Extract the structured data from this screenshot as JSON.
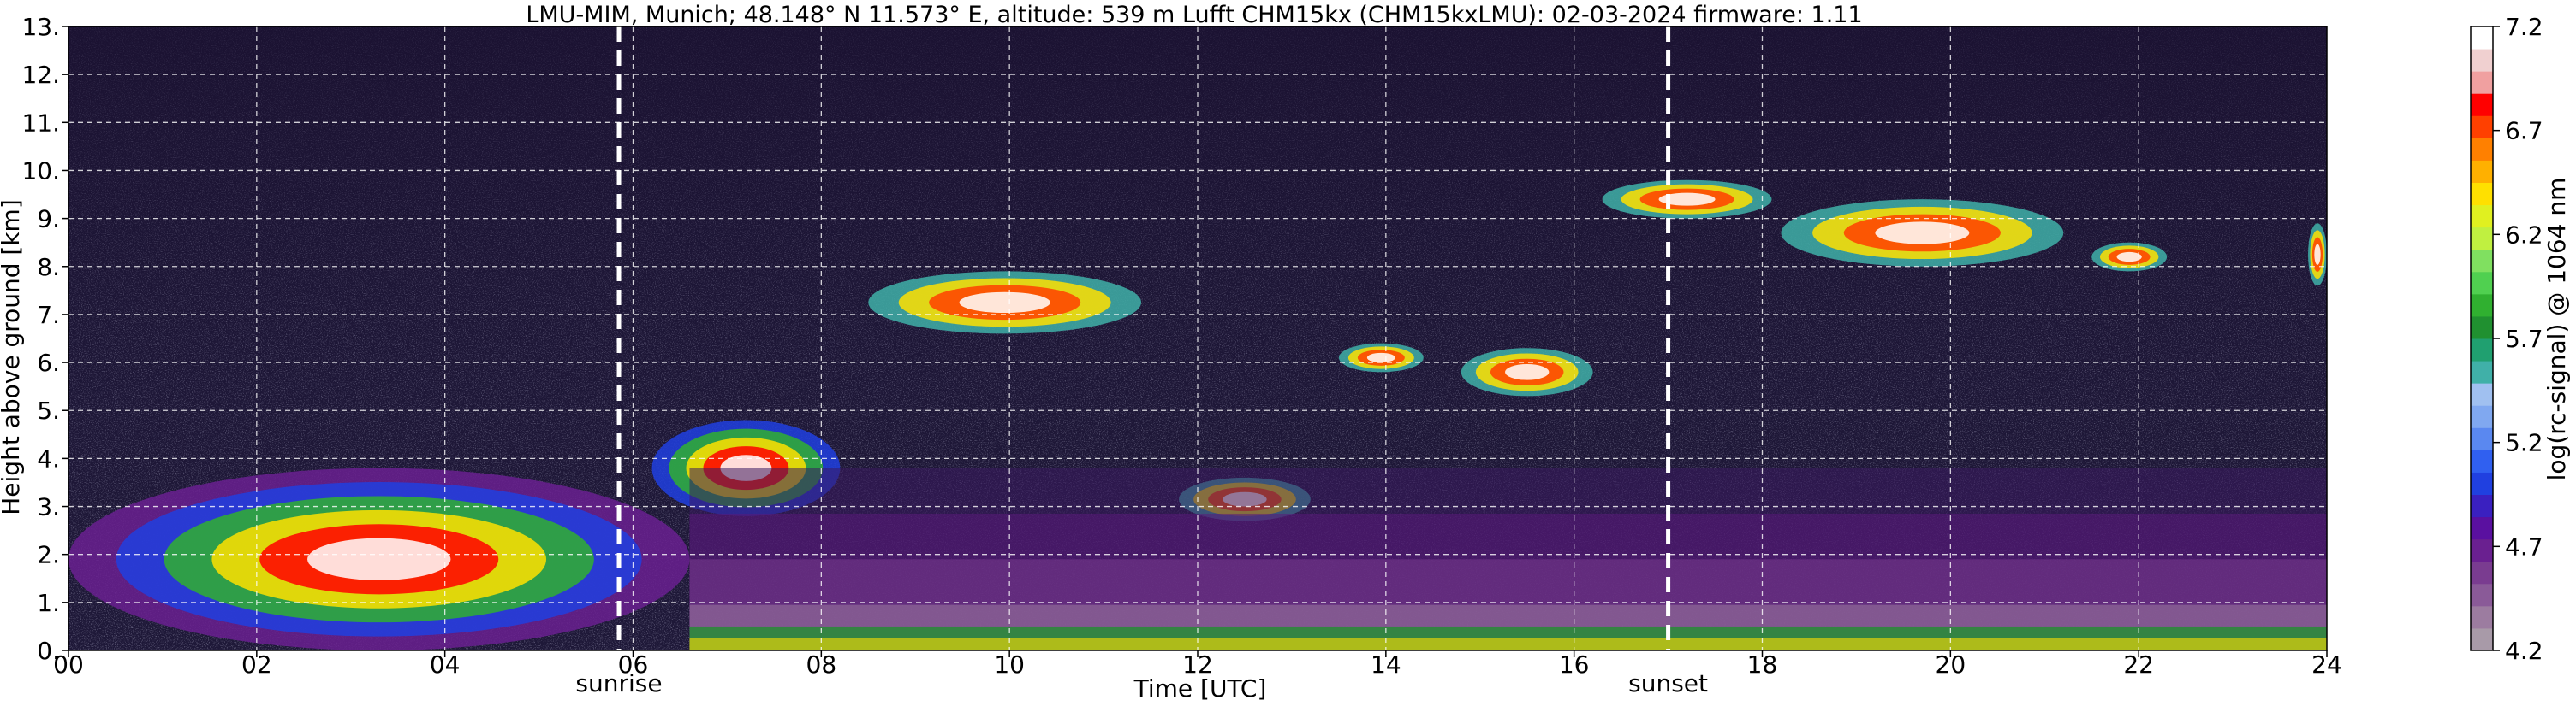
{
  "chart_data": {
    "type": "heatmap",
    "title": "LMU-MIM, Munich; 48.148° N 11.573° E, altitude: 539 m    Lufft CHM15kx (CHM15kxLMU): 02-03-2024    firmware: 1.11",
    "xlabel": "Time [UTC]",
    "ylabel": "Height above ground [km]",
    "xlim": [
      0,
      24
    ],
    "ylim": [
      0,
      13
    ],
    "x_ticks": [
      "00",
      "02",
      "04",
      "06",
      "08",
      "10",
      "12",
      "14",
      "16",
      "18",
      "20",
      "22",
      "24"
    ],
    "y_ticks": [
      "0.",
      "1.",
      "2.",
      "3.",
      "4.",
      "5.",
      "6.",
      "7.",
      "8.",
      "9.",
      "10.",
      "11.",
      "12.",
      "13."
    ],
    "grid": true,
    "colorbar": {
      "label": "log(rc-signal) @ 1064 nm",
      "range": [
        4.2,
        7.2
      ],
      "ticks": [
        "4.2",
        "4.7",
        "5.2",
        "5.7",
        "6.2",
        "6.7",
        "7.2"
      ],
      "colors": [
        "#a89aa8",
        "#9c7ca0",
        "#8a5a98",
        "#7a3c90",
        "#6a2090",
        "#5a10a0",
        "#3a20c0",
        "#2040e0",
        "#3060f0",
        "#5a88f0",
        "#80a8f0",
        "#a0c0f0",
        "#40b0a8",
        "#20a070",
        "#209030",
        "#30b030",
        "#50d050",
        "#80e060",
        "#c0f040",
        "#e0f020",
        "#ffe000",
        "#ffb000",
        "#ff8000",
        "#ff4000",
        "#ff0000",
        "#f0a0a0",
        "#f0d0d0",
        "#ffffff"
      ]
    },
    "annotations": [
      {
        "text": "sunrise",
        "x": 5.85
      },
      {
        "text": "sunset",
        "x": 17.0
      }
    ],
    "features": [
      {
        "kind": "boundary_layer_night",
        "x_range": [
          0,
          6.6
        ],
        "y_range": [
          0,
          3.8
        ]
      },
      {
        "kind": "morning_aerosol_plume",
        "x_range": [
          6.2,
          8.2
        ],
        "y_range": [
          2.8,
          4.8
        ]
      },
      {
        "kind": "cloud",
        "x_range": [
          8.5,
          11.4
        ],
        "y_range": [
          6.6,
          7.9
        ]
      },
      {
        "kind": "cloud",
        "x_range": [
          11.8,
          13.2
        ],
        "y_range": [
          2.7,
          3.6
        ]
      },
      {
        "kind": "cloud",
        "x_range": [
          13.5,
          14.4
        ],
        "y_range": [
          5.8,
          6.4
        ]
      },
      {
        "kind": "cloud",
        "x_range": [
          14.8,
          16.2
        ],
        "y_range": [
          5.3,
          6.3
        ]
      },
      {
        "kind": "cloud",
        "x_range": [
          16.3,
          18.1
        ],
        "y_range": [
          9.0,
          9.8
        ]
      },
      {
        "kind": "cloud",
        "x_range": [
          18.2,
          21.2
        ],
        "y_range": [
          8.0,
          9.4
        ]
      },
      {
        "kind": "cloud",
        "x_range": [
          21.5,
          22.3
        ],
        "y_range": [
          7.9,
          8.5
        ]
      },
      {
        "kind": "cloud",
        "x_range": [
          23.8,
          24.0
        ],
        "y_range": [
          7.6,
          8.9
        ]
      },
      {
        "kind": "residual_layer_evening",
        "x_range": [
          6.6,
          24
        ],
        "y_range": [
          0,
          3.8
        ]
      }
    ]
  }
}
